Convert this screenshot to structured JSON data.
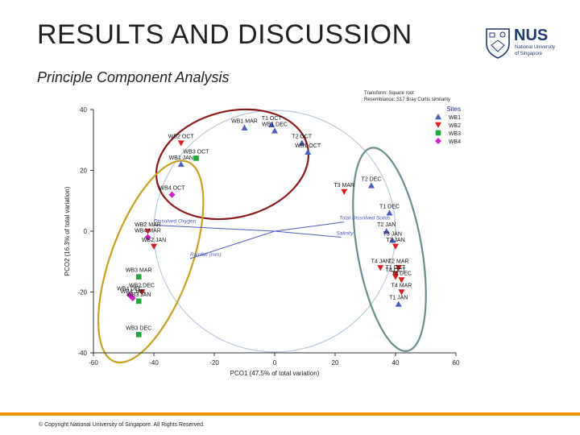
{
  "slide": {
    "title": "RESULTS AND DISCUSSION",
    "subtitle": "Principle Component Analysis",
    "copyright": "© Copyright National University of Singapore. All Rights Reserved."
  },
  "logo": {
    "name": "NUS",
    "line1": "National University",
    "line2": "of Singapore",
    "color": "#1f3a6e"
  },
  "colors": {
    "accent_bar": "#f39200",
    "WB1": "#4a5cc0",
    "WB2": "#d42020",
    "WB3": "#22a83a",
    "WB4": "#d020c8",
    "ellipse_red": "#8b1a1a",
    "ellipse_gold": "#c8a020",
    "ellipse_teal": "#6a8e8e",
    "circle": "#b8c8dc",
    "vector": "#4a5cc0"
  },
  "chart_data": {
    "type": "scatter",
    "info": [
      "Transform: Square root",
      "Resemblance: S17 Bray Curtis similarity"
    ],
    "xlabel": "PCO1 (47.5% of total variation)",
    "ylabel": "PCO2 (16.3% of total variation)",
    "xlim": [
      -60,
      60
    ],
    "ylim": [
      -40,
      40
    ],
    "xticks": [
      -60,
      -40,
      -20,
      0,
      20,
      40,
      60
    ],
    "yticks": [
      -40,
      -20,
      0,
      20,
      40
    ],
    "legend_title": "Sites",
    "legend_position": "top-right",
    "series": [
      {
        "name": "WB1",
        "marker": "triangle-up",
        "points": [
          {
            "label": "WB1 MAR",
            "x": -10,
            "y": 34
          },
          {
            "label": "WB1 DEC",
            "x": 0,
            "y": 33
          },
          {
            "label": "WB1 OCT",
            "x": 11,
            "y": 26
          },
          {
            "label": "WB1 JAN",
            "x": -31,
            "y": 22
          },
          {
            "label": "T1 OCT",
            "x": -1,
            "y": 35
          },
          {
            "label": "T2 OCT",
            "x": 9,
            "y": 29
          },
          {
            "label": "T2 DEC",
            "x": 32,
            "y": 15
          },
          {
            "label": "T1 DEC",
            "x": 38,
            "y": 6
          },
          {
            "label": "T2 JAN",
            "x": 37,
            "y": 0
          },
          {
            "label": "T3 JAN",
            "x": 39,
            "y": -3
          },
          {
            "label": "T1 JAN",
            "x": 41,
            "y": -24
          }
        ]
      },
      {
        "name": "WB2",
        "marker": "triangle-down",
        "points": [
          {
            "label": "WB2 OCT",
            "x": -31,
            "y": 29
          },
          {
            "label": "WB2 MAR",
            "x": -42,
            "y": 0
          },
          {
            "label": "WB2 JAN",
            "x": -40,
            "y": -5
          },
          {
            "label": "WB2 DEC",
            "x": -44,
            "y": -20
          },
          {
            "label": "T3 MAR",
            "x": 23,
            "y": 13
          },
          {
            "label": "T3 JAN",
            "x": 40,
            "y": -5
          },
          {
            "label": "T4 JAN",
            "x": 35,
            "y": -12
          },
          {
            "label": "T2 MAR",
            "x": 41,
            "y": -12
          },
          {
            "label": "T1 OCT",
            "x": 40,
            "y": -14
          },
          {
            "label": "T4 OCT",
            "x": 40,
            "y": -15
          },
          {
            "label": "T4 DEC",
            "x": 42,
            "y": -16
          },
          {
            "label": "T4 MAR",
            "x": 42,
            "y": -20
          }
        ]
      },
      {
        "name": "WB3",
        "marker": "square",
        "points": [
          {
            "label": "WB3 OCT",
            "x": -26,
            "y": 24
          },
          {
            "label": "WB3 MAR",
            "x": -45,
            "y": -15
          },
          {
            "label": "WB3 JAN",
            "x": -45,
            "y": -23
          },
          {
            "label": "WB3 DEC",
            "x": -45,
            "y": -34
          }
        ]
      },
      {
        "name": "WB4",
        "marker": "diamond",
        "points": [
          {
            "label": "WB4 OCT",
            "x": -34,
            "y": 12
          },
          {
            "label": "WB4 MAR",
            "x": -42,
            "y": -2
          },
          {
            "label": "WB4 DEC",
            "x": -48,
            "y": -21
          },
          {
            "label": "WB4 JAN",
            "x": -47,
            "y": -22
          }
        ]
      }
    ],
    "vectors": [
      {
        "label": "Dissolved Oxygen",
        "x": -40,
        "y": 2
      },
      {
        "label": "Total Dissolved Solids",
        "x": 23,
        "y": 3
      },
      {
        "label": "Salinity",
        "x": 22,
        "y": -2
      },
      {
        "label": "Rainfall (mm)",
        "x": -28,
        "y": -9
      }
    ]
  }
}
